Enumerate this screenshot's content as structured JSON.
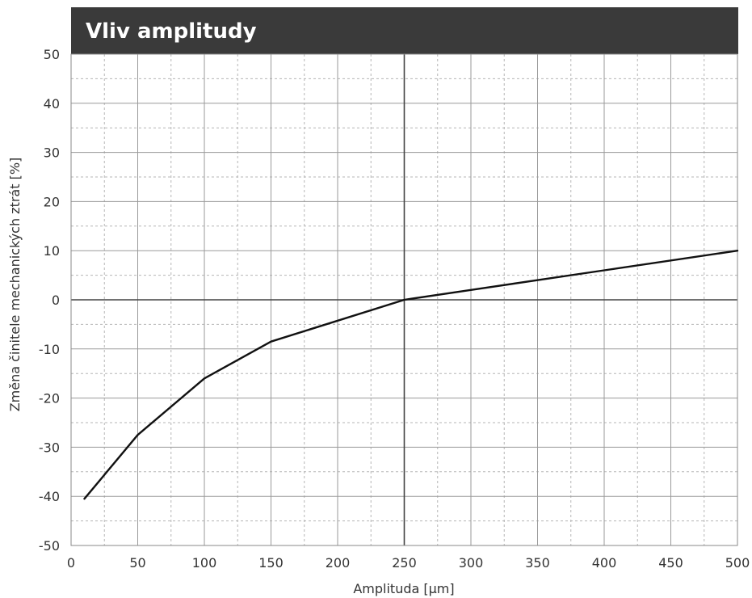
{
  "chart_data": {
    "type": "line",
    "title": "Vliv amplitudy",
    "xlabel": "Amplituda [µm]",
    "ylabel": "Změna činitele mechanických ztrát [%]",
    "xlim": [
      0,
      500
    ],
    "ylim": [
      -50,
      50
    ],
    "xticks": [
      0,
      50,
      100,
      150,
      200,
      250,
      300,
      350,
      400,
      450,
      500
    ],
    "yticks": [
      50,
      40,
      30,
      20,
      10,
      0,
      -10,
      -20,
      -30,
      -40,
      -50
    ],
    "xtick_labels": [
      "0",
      "50",
      "100",
      "150",
      "200",
      "250",
      "300",
      "350",
      "400",
      "450",
      "500"
    ],
    "ytick_labels": [
      "50",
      "40",
      "30",
      "20",
      "10",
      "0",
      "-10",
      "-20",
      "-30",
      "-40",
      "-50"
    ],
    "grid": true,
    "minor_grid": "dashed",
    "series": [
      {
        "x": [
          10,
          50,
          100,
          150,
          250,
          300,
          400,
          500
        ],
        "y": [
          -40.5,
          -27.5,
          -16,
          -8.5,
          0,
          2,
          6,
          10
        ]
      }
    ],
    "colors": {
      "title_bar": "#3a3a3a",
      "title_text": "#ffffff",
      "grid_major": "#9a9a9a",
      "grid_minor": "#b5b5b5",
      "line": "#111111",
      "axis_emphasis": "#444444",
      "tick_text": "#333333"
    }
  }
}
